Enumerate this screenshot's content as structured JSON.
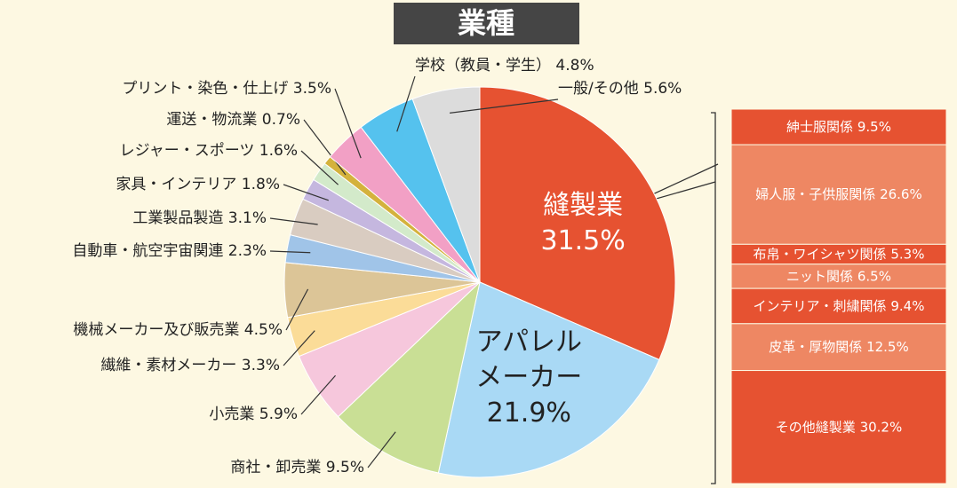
{
  "chart_data": [
    {
      "type": "pie",
      "title": "業種",
      "categories": [
        "縫製業",
        "アパレルメーカー",
        "商社・卸売業",
        "小売業",
        "繊維・素材メーカー",
        "機械メーカー及び販売業",
        "自動車・航空宇宙関連",
        "工業製品製造",
        "家具・インテリア",
        "レジャー・スポーツ",
        "運送・物流業",
        "プリント・染色・仕上げ",
        "学校（教員・学生）",
        "一般/その他"
      ],
      "values": [
        31.5,
        21.9,
        9.5,
        5.9,
        3.3,
        4.5,
        2.3,
        3.1,
        1.8,
        1.6,
        0.7,
        3.5,
        4.8,
        5.6
      ],
      "value_labels": [
        "31.5%",
        "21.9%",
        "9.5%",
        "5.9%",
        "3.3%",
        "4.5%",
        "2.3%",
        "3.1%",
        "1.8%",
        "1.6%",
        "0.7%",
        "3.5%",
        "4.8%",
        "5.6%"
      ],
      "colors": [
        "#e65231",
        "#a9d9f5",
        "#c9df95",
        "#f6c7dc",
        "#fbdc98",
        "#dcc597",
        "#a0c4e8",
        "#d9ccc1",
        "#c5b7df",
        "#d3eaca",
        "#d4b23c",
        "#f2a0c5",
        "#55c2ee",
        "#dcdcdc"
      ]
    },
    {
      "type": "bar",
      "categories": [
        "紳士服関係",
        "婦人服・子供服関係",
        "布帛・ワイシャツ関係",
        "ニット関係",
        "インテリア・刺繍関係",
        "皮革・厚物関係",
        "その他縫製業"
      ],
      "values": [
        9.5,
        26.6,
        5.3,
        6.5,
        9.4,
        12.5,
        30.2
      ],
      "value_labels": [
        "9.5%",
        "26.6%",
        "5.3%",
        "6.5%",
        "9.4%",
        "12.5%",
        "30.2%"
      ],
      "colors": [
        "#e65231",
        "#ee8763",
        "#e65231",
        "#ee8763",
        "#e65231",
        "#ee8763",
        "#e65231"
      ]
    }
  ]
}
